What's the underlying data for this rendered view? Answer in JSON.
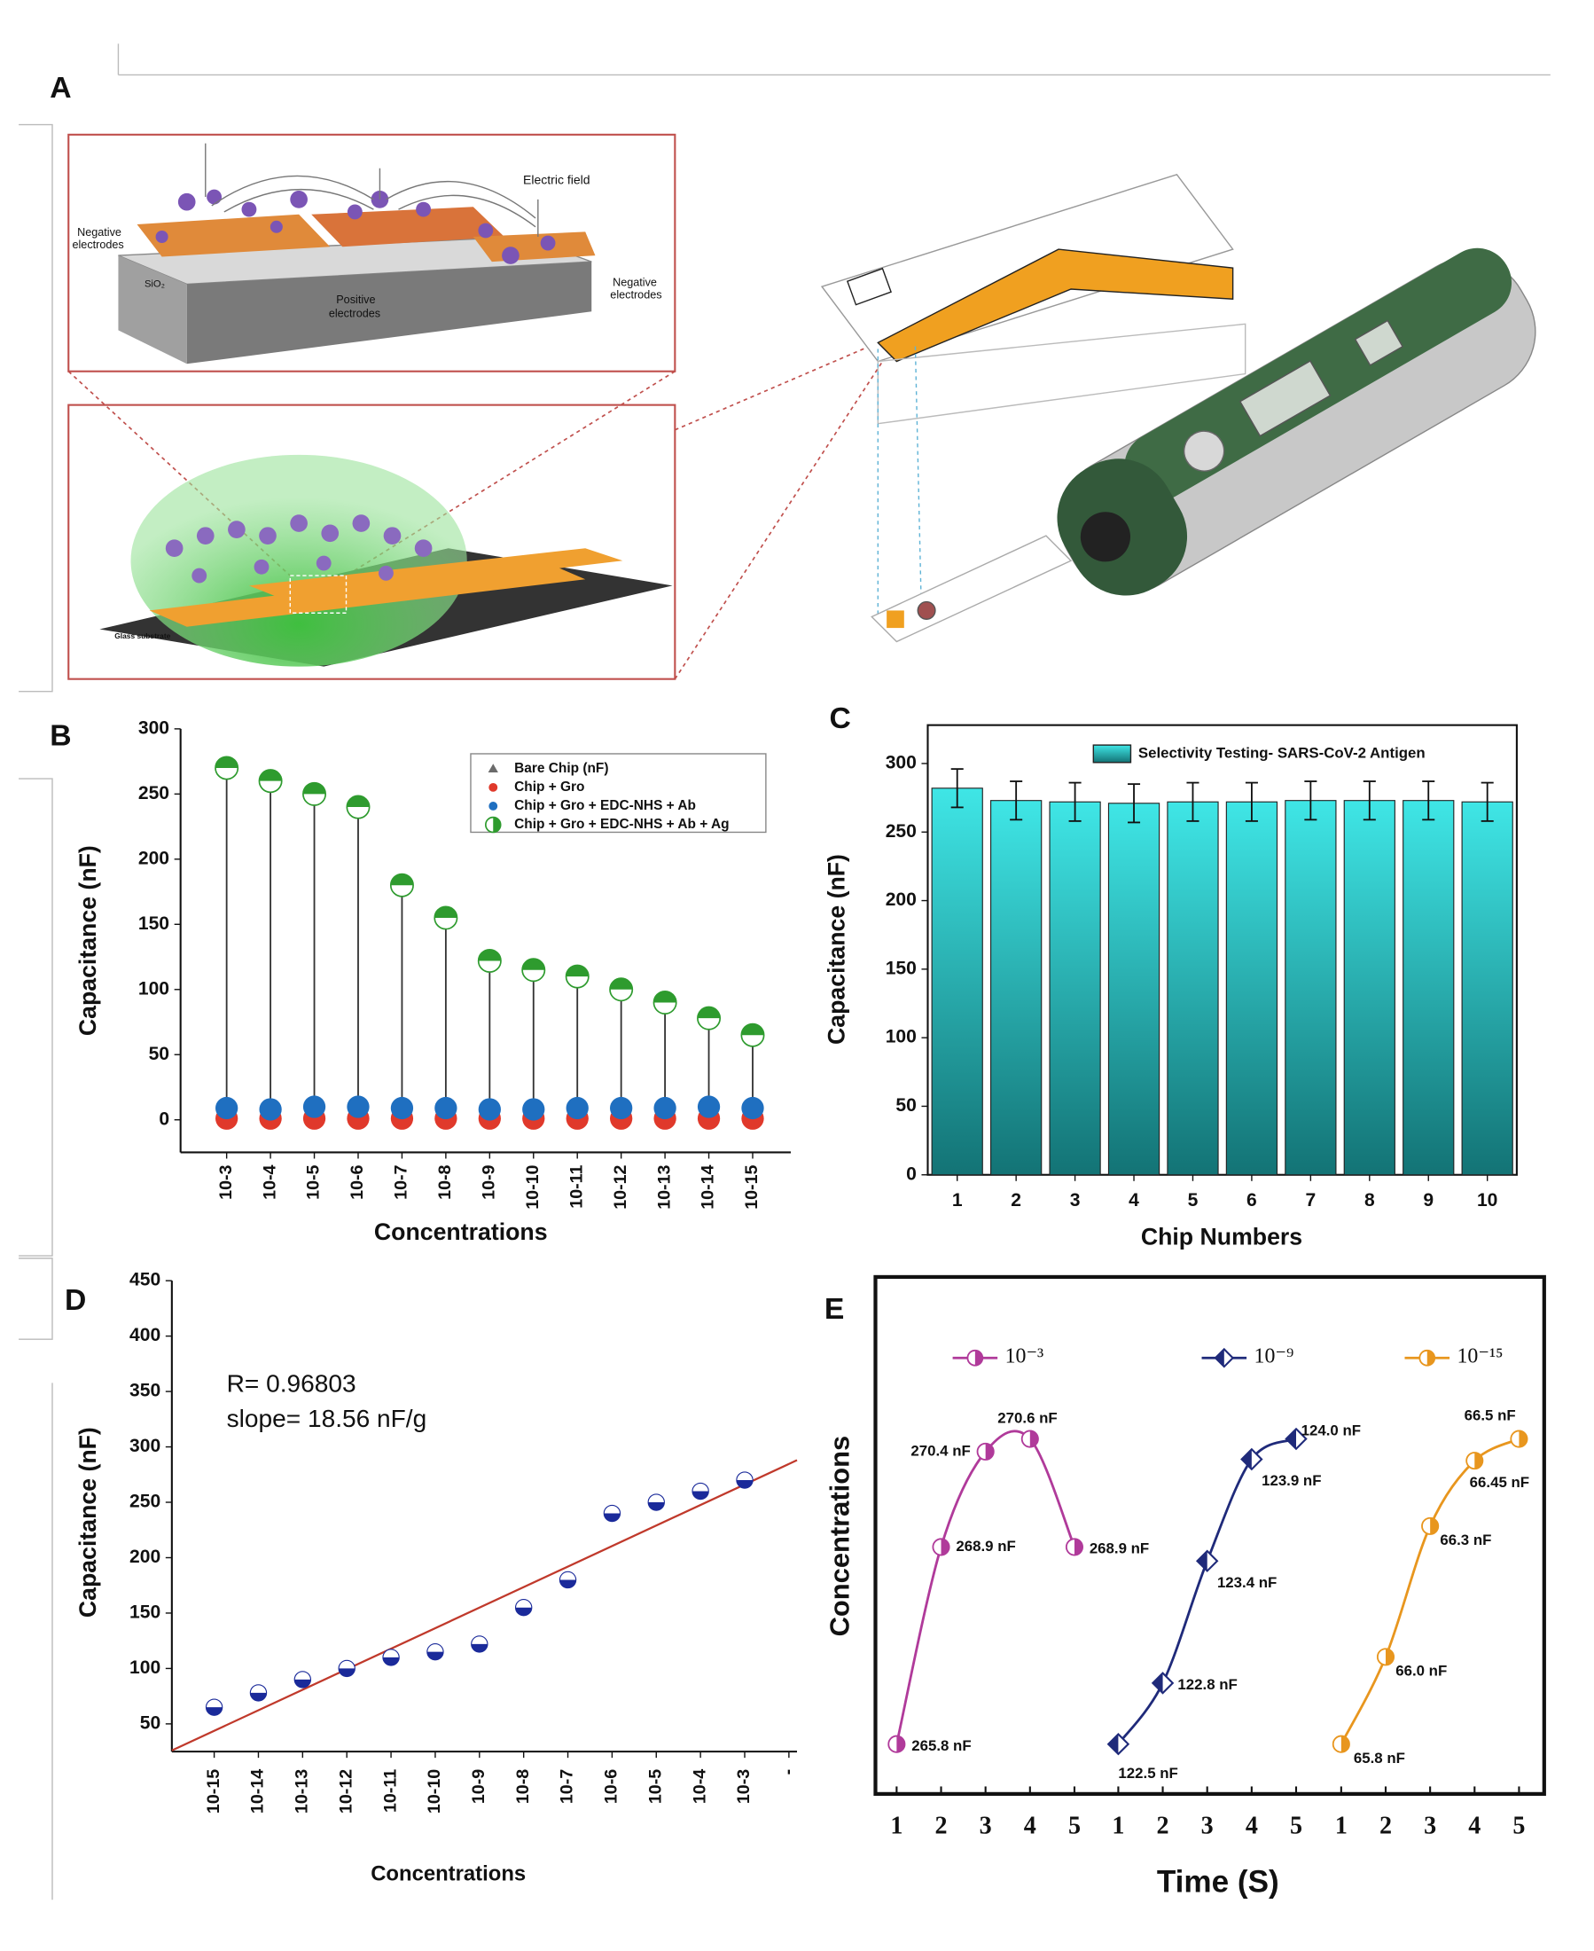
{
  "panel_labels": [
    "A",
    "B",
    "C",
    "D",
    "E"
  ],
  "illustration": {
    "texts": [
      "Electric field",
      "Negative",
      "electrodes",
      "Negative",
      "electrodes",
      "Positive",
      "electrodes",
      "SiO₂",
      "Glass substrate"
    ]
  },
  "chart_data": [
    {
      "type": "stem",
      "xlabel": "Concentrations",
      "ylabel": "Capacitance (nF)",
      "categories": [
        "10-3",
        "10-4",
        "10-5",
        "10-6",
        "10-7",
        "10-8",
        "10-9",
        "10-10",
        "10-11",
        "10-12",
        "10-13",
        "10-14",
        "10-15"
      ],
      "ylim": [
        -25,
        300
      ],
      "yticks": [
        0,
        50,
        100,
        150,
        200,
        250,
        300
      ],
      "series": [
        {
          "name": "Bare Chip (nF)",
          "color": "#6b6b6b",
          "marker": "triangle",
          "values": [
            0,
            0,
            0,
            0,
            0,
            0,
            0,
            0,
            0,
            0,
            0,
            0,
            0
          ]
        },
        {
          "name": "Chip + Gro",
          "color": "#e0392b",
          "marker": "circle",
          "values": [
            1,
            1,
            1,
            1,
            1,
            1,
            1,
            1,
            1,
            1,
            1,
            1,
            1
          ]
        },
        {
          "name": "Chip + Gro + EDC-NHS + Ab",
          "color": "#1f6fc0",
          "marker": "circle",
          "values": [
            9,
            8,
            10,
            10,
            9,
            9,
            8,
            8,
            9,
            9,
            9,
            10,
            9
          ]
        },
        {
          "name": "Chip + Gro + EDC-NHS + Ab + Ag",
          "color": "#2e9b2e",
          "marker": "half-circle",
          "stem": true,
          "values": [
            270,
            260,
            250,
            240,
            180,
            155,
            122,
            115,
            110,
            100,
            90,
            78,
            65
          ]
        }
      ]
    },
    {
      "type": "bar",
      "xlabel": "Chip Numbers",
      "ylabel": "Capacitance (nF)",
      "categories": [
        "1",
        "2",
        "3",
        "4",
        "5",
        "6",
        "7",
        "8",
        "9",
        "10"
      ],
      "ylim": [
        0,
        328
      ],
      "yticks": [
        0,
        50,
        100,
        150,
        200,
        250,
        300
      ],
      "series": [
        {
          "name": "Selectivity Testing- SARS-CoV-2 Antigen",
          "color": "#3fe6e6",
          "color_bottom": "#137375",
          "values": [
            282,
            273,
            272,
            271,
            272,
            272,
            273,
            273,
            273,
            272
          ],
          "errors": [
            14,
            14,
            14,
            14,
            14,
            14,
            14,
            14,
            14,
            14
          ]
        }
      ]
    },
    {
      "type": "scatter",
      "xlabel": "Concentrations",
      "ylabel": "Capacitance (nF)",
      "annotations": [
        "R= 0.96803",
        "slope= 18.56 nF/g"
      ],
      "categories": [
        "10-15",
        "10-14",
        "10-13",
        "10-12",
        "10-11",
        "10-10",
        "10-9",
        "10-8",
        "10-7",
        "10-6",
        "10-5",
        "10-4",
        "10-3",
        "-"
      ],
      "ylim": [
        25,
        450
      ],
      "yticks": [
        50,
        100,
        150,
        200,
        250,
        300,
        350,
        400,
        450
      ],
      "series": [
        {
          "color": "#1a2a9a",
          "values": [
            65,
            78,
            90,
            100,
            110,
            115,
            122,
            155,
            180,
            240,
            250,
            260,
            270,
            null
          ]
        }
      ],
      "fit": {
        "color": "#c0392b",
        "values": [
          26,
          288
        ]
      }
    },
    {
      "type": "line",
      "xlabel": "Time (S)",
      "ylabel": "Concentrations",
      "series": [
        {
          "name": "10⁻³",
          "color": "#b03a9a",
          "marker": "half-circle",
          "x": [
            1,
            2,
            3,
            4,
            5
          ],
          "values": [
            265.8,
            268.9,
            270.4,
            270.6,
            268.9
          ],
          "value_labels": [
            "265.8 nF",
            "268.9 nF",
            "270.4 nF",
            "270.6 nF",
            "268.9 nF"
          ]
        },
        {
          "name": "10⁻⁹",
          "color": "#1f2a7a",
          "marker": "diamond",
          "x": [
            1,
            2,
            3,
            4,
            5
          ],
          "values": [
            122.5,
            122.8,
            123.4,
            123.9,
            124.0
          ],
          "value_labels": [
            "122.5 nF",
            "122.8 nF",
            "123.4 nF",
            "123.9 nF",
            "124.0 nF"
          ]
        },
        {
          "name": "10⁻¹⁵",
          "color": "#e8961e",
          "marker": "half-circle",
          "x": [
            1,
            2,
            3,
            4,
            5
          ],
          "values": [
            65.8,
            66.0,
            66.3,
            66.45,
            66.5
          ],
          "value_labels": [
            "65.8 nF",
            "66.0 nF",
            "66.3 nF",
            "66.45 nF",
            "66.5 nF"
          ]
        }
      ]
    }
  ]
}
